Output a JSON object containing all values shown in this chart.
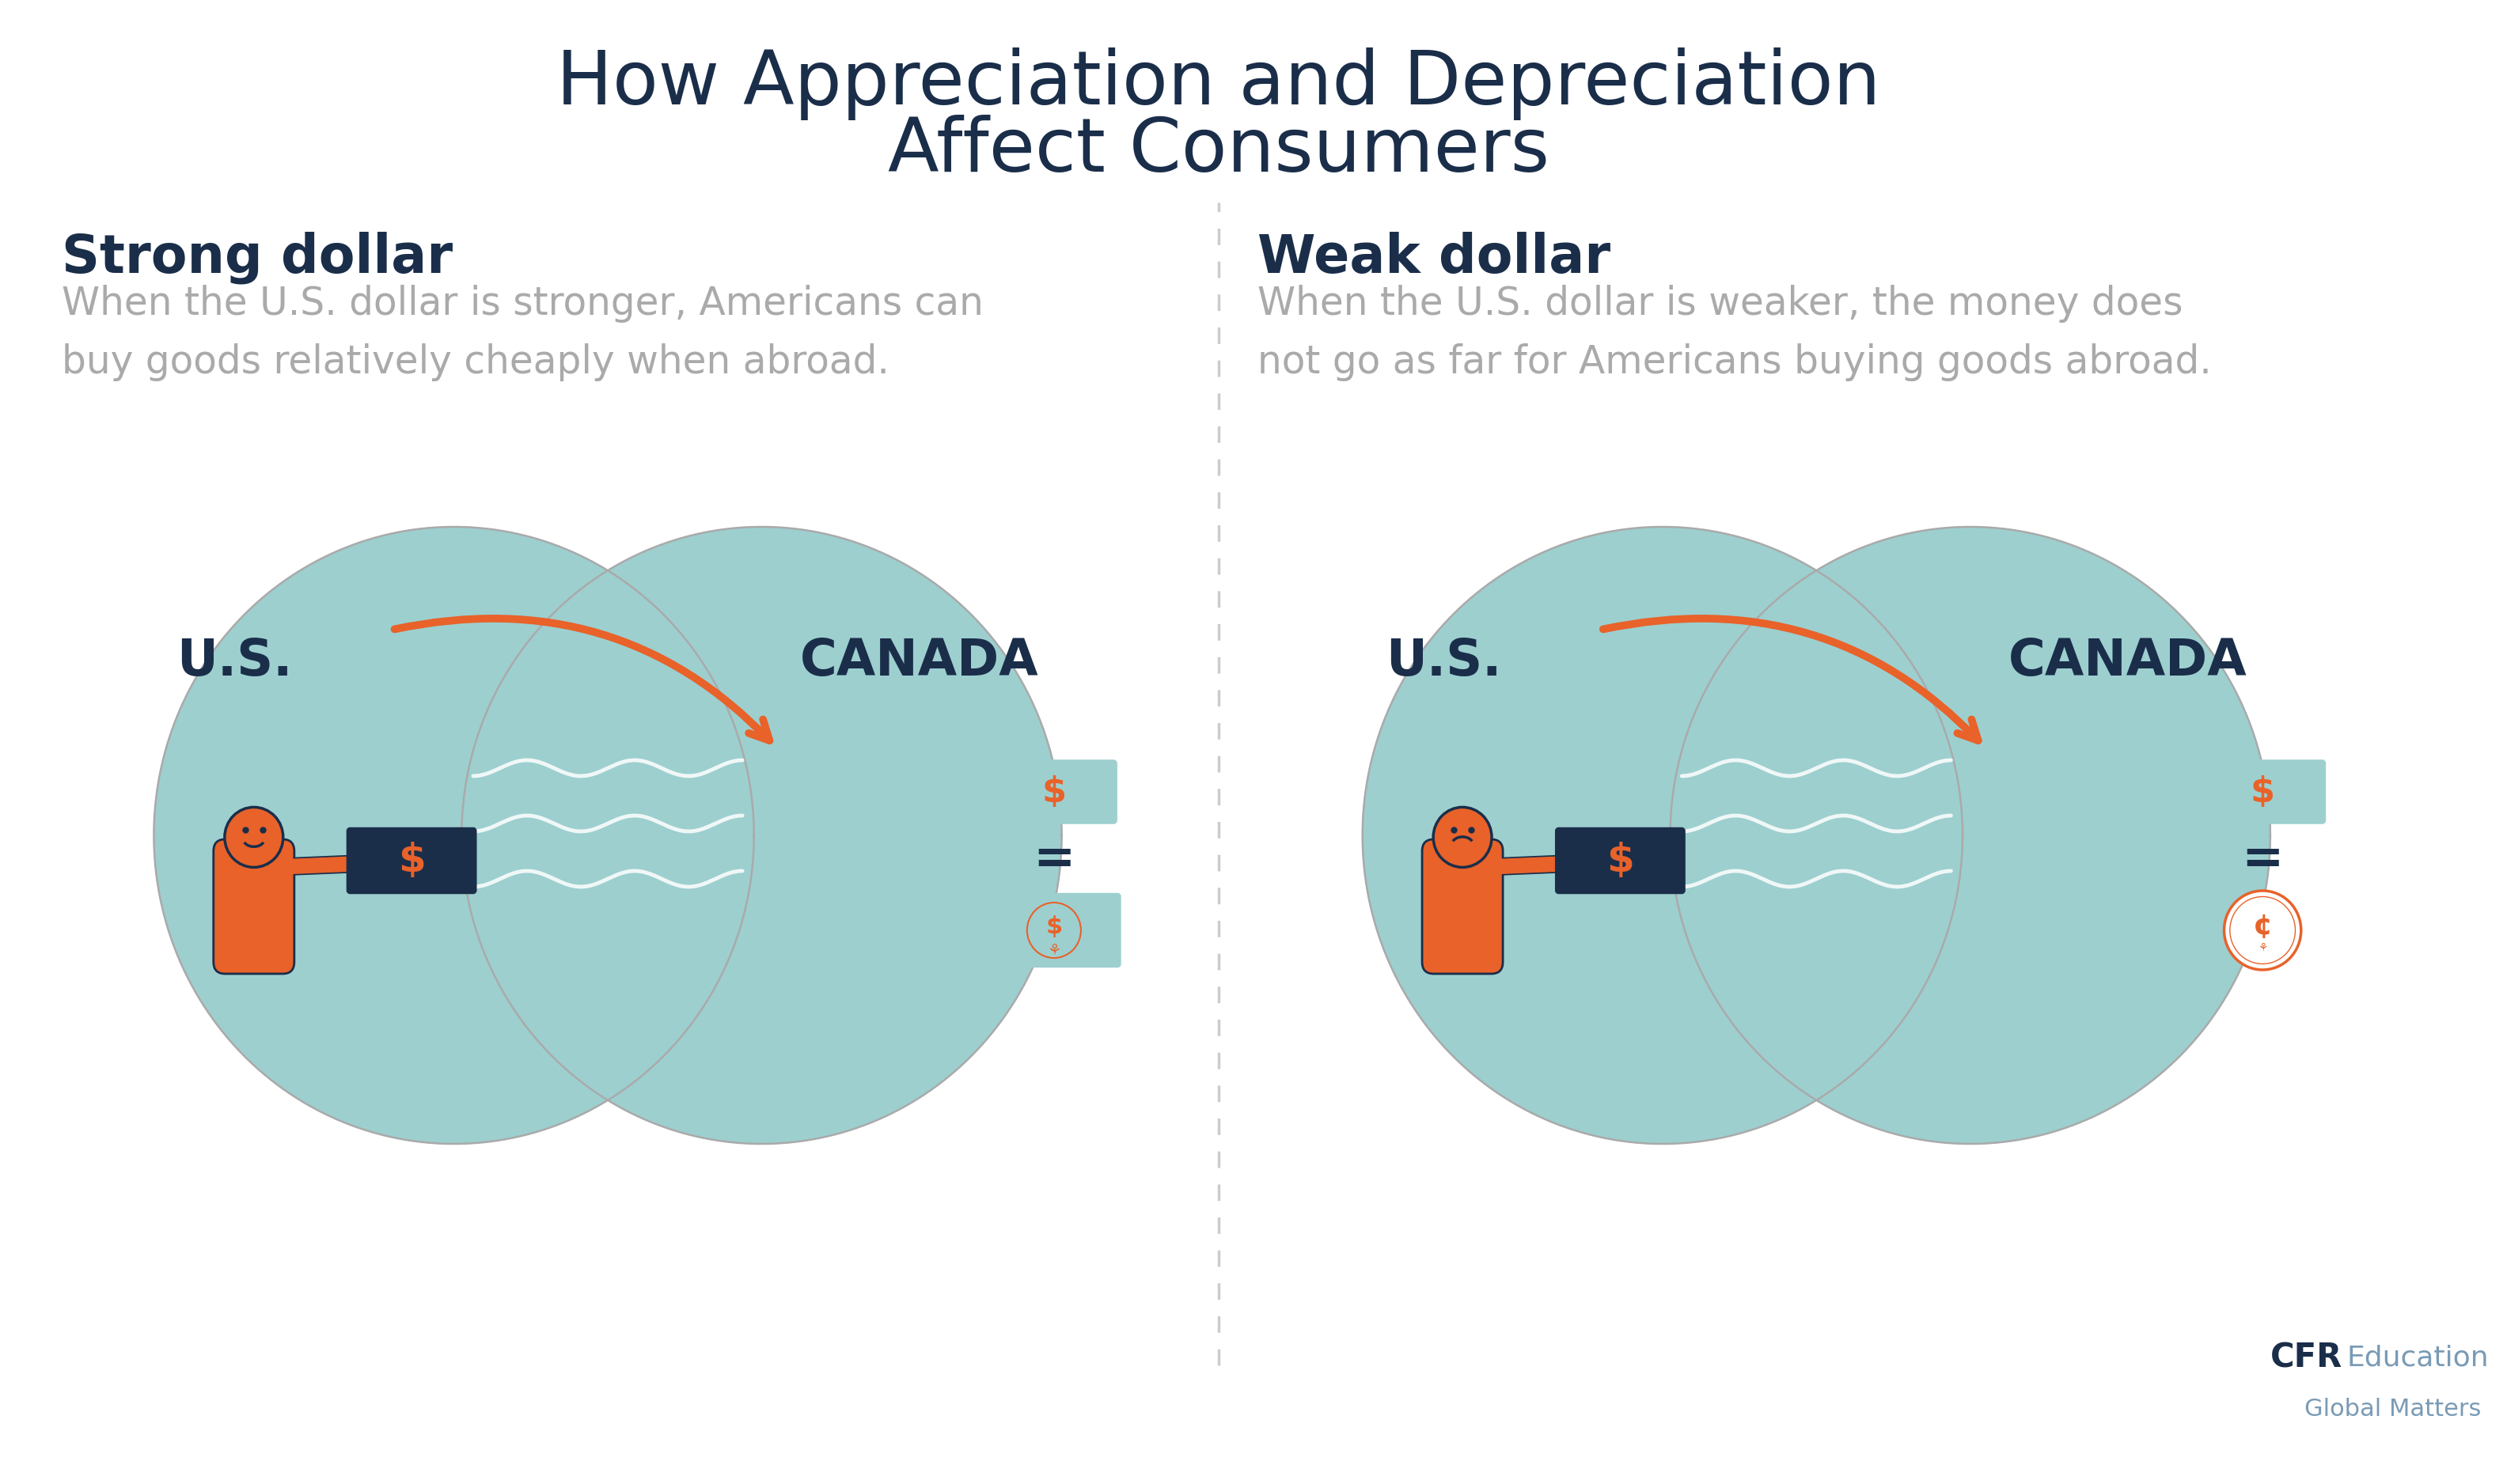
{
  "title_line1": "How Appreciation and Depreciation",
  "title_line2": "Affect Consumers",
  "title_color": "#1a2e4a",
  "title_fontsize": 68,
  "bg_color": "#ffffff",
  "left_header": "Strong dollar",
  "right_header": "Weak dollar",
  "header_color": "#1a2e4a",
  "header_fontsize": 48,
  "left_desc": "When the U.S. dollar is stronger, Americans can\nbuy goods relatively cheaply when abroad.",
  "right_desc": "When the U.S. dollar is weaker, the money does\nnot go as far for Americans buying goods abroad.",
  "desc_color": "#aaaaaa",
  "desc_fontsize": 35,
  "us_label": "U.S.",
  "canada_label": "CANADA",
  "label_color": "#1a2e4a",
  "label_fontsize": 46,
  "teal_color": "#9dcfcf",
  "orange_color": "#e8622a",
  "dark_navy": "#1a2e4a",
  "divider_color": "#cccccc",
  "cfr_bold": "#1a2e4a",
  "cfr_light": "#7a9bb5",
  "wave_color": "#ffffff",
  "circle_color": "#aaaaaa",
  "bill_bg": "#9dcfcf",
  "bill_border": "#9dcfcf",
  "equal_color": "#1a2e4a"
}
